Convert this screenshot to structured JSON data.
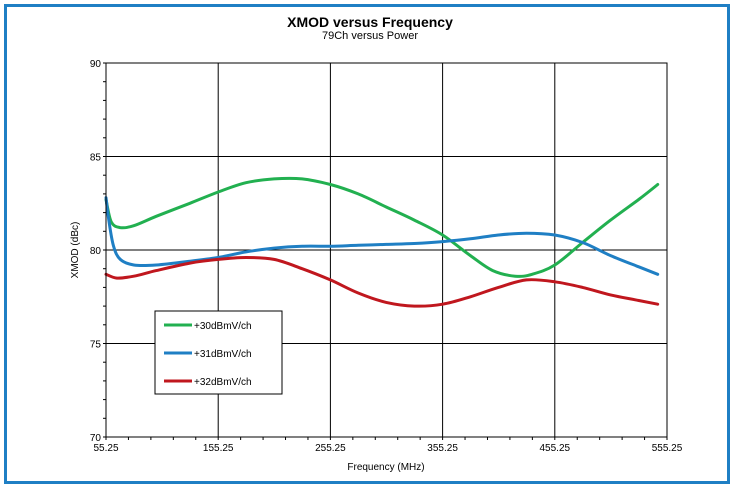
{
  "chart_data": {
    "type": "line",
    "title": "XMOD versus Frequency",
    "subtitle": "79Ch versus Power",
    "xlabel": "Frequency (MHz)",
    "ylabel": "XMOD (dBc)",
    "xlim": [
      55.25,
      555.25
    ],
    "ylim": [
      70,
      90
    ],
    "x_ticks": [
      55.25,
      155.25,
      255.25,
      355.25,
      455.25,
      555.25
    ],
    "x_tick_labels": [
      "55.25",
      "155.25",
      "255.25",
      "355.25",
      "455.25",
      "555.25"
    ],
    "y_ticks": [
      70,
      75,
      80,
      85,
      90
    ],
    "y_tick_labels": [
      "70",
      "75",
      "80",
      "85",
      "90"
    ],
    "grid": true,
    "legend_position": "lower-left",
    "series": [
      {
        "name": "+30dBmV/ch",
        "color": "#22b050",
        "x": [
          55.25,
          60,
          68,
          80,
          100,
          130,
          155.25,
          180,
          205,
          230,
          255.25,
          280,
          305,
          330,
          355.25,
          380,
          400,
          420,
          435,
          455.25,
          480,
          505,
          530,
          547
        ],
        "y": [
          82.7,
          81.5,
          81.2,
          81.3,
          81.8,
          82.5,
          83.1,
          83.6,
          83.8,
          83.8,
          83.5,
          83.0,
          82.3,
          81.6,
          80.8,
          79.7,
          78.9,
          78.6,
          78.7,
          79.2,
          80.4,
          81.6,
          82.7,
          83.5
        ]
      },
      {
        "name": "+31dBmV/ch",
        "color": "#1f7fc4",
        "x": [
          55.25,
          58,
          62,
          68,
          80,
          100,
          130,
          155.25,
          180,
          205,
          230,
          255.25,
          280,
          305,
          330,
          355.25,
          380,
          405,
          430,
          455.25,
          480,
          505,
          530,
          547
        ],
        "y": [
          82.8,
          81.5,
          80.2,
          79.5,
          79.2,
          79.2,
          79.4,
          79.6,
          79.9,
          80.1,
          80.2,
          80.2,
          80.25,
          80.3,
          80.35,
          80.45,
          80.6,
          80.8,
          80.9,
          80.8,
          80.4,
          79.7,
          79.1,
          78.7
        ]
      },
      {
        "name": "+32dBmV/ch",
        "color": "#c0171e",
        "x": [
          55.25,
          65,
          80,
          100,
          130,
          155.25,
          180,
          205,
          230,
          255.25,
          280,
          305,
          330,
          355.25,
          380,
          405,
          430,
          455.25,
          480,
          505,
          530,
          547
        ],
        "y": [
          78.7,
          78.5,
          78.6,
          78.9,
          79.3,
          79.5,
          79.6,
          79.5,
          79.0,
          78.4,
          77.7,
          77.2,
          77.0,
          77.1,
          77.5,
          78.0,
          78.4,
          78.3,
          78.0,
          77.6,
          77.3,
          77.1
        ]
      }
    ]
  }
}
